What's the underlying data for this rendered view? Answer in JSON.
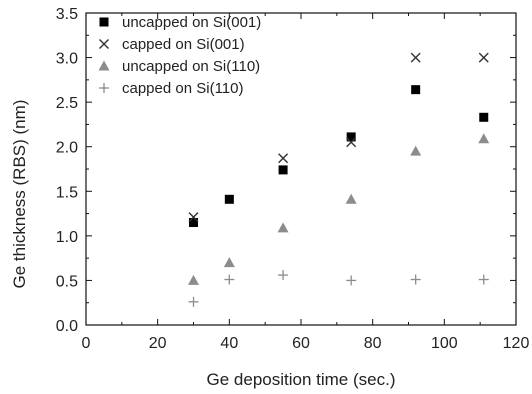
{
  "chart_data": {
    "type": "scatter",
    "title": "",
    "xlabel": "Ge deposition time (sec.)",
    "ylabel": "Ge thickness (RBS) (nm)",
    "xlim": [
      0,
      120
    ],
    "ylim": [
      0,
      3.5
    ],
    "x_ticks": [
      "0",
      "20",
      "40",
      "60",
      "80",
      "100",
      "120"
    ],
    "y_ticks": [
      "0.0",
      "0.5",
      "1.0",
      "1.5",
      "2.0",
      "2.5",
      "3.0",
      "3.5"
    ],
    "grid": false,
    "legend_position": "top-left",
    "series": [
      {
        "name": "uncapped on Si(001)",
        "marker": "square",
        "color": "#000000",
        "x": [
          30,
          40,
          55,
          74,
          92,
          111
        ],
        "y": [
          1.15,
          1.41,
          1.74,
          2.11,
          2.64,
          2.33
        ]
      },
      {
        "name": "capped on Si(001)",
        "marker": "x",
        "color": "#333333",
        "x": [
          30,
          55,
          74,
          92,
          111
        ],
        "y": [
          1.21,
          1.87,
          2.05,
          3.0,
          3.0
        ]
      },
      {
        "name": "uncapped on Si(110)",
        "marker": "triangle",
        "color": "#8c8c8c",
        "x": [
          30,
          40,
          55,
          74,
          92,
          111
        ],
        "y": [
          0.5,
          0.7,
          1.09,
          1.41,
          1.95,
          2.09
        ]
      },
      {
        "name": "capped on Si(110)",
        "marker": "plus",
        "color": "#8c8c8c",
        "x": [
          30,
          40,
          55,
          74,
          92,
          111
        ],
        "y": [
          0.26,
          0.51,
          0.56,
          0.5,
          0.51,
          0.51
        ]
      }
    ]
  }
}
